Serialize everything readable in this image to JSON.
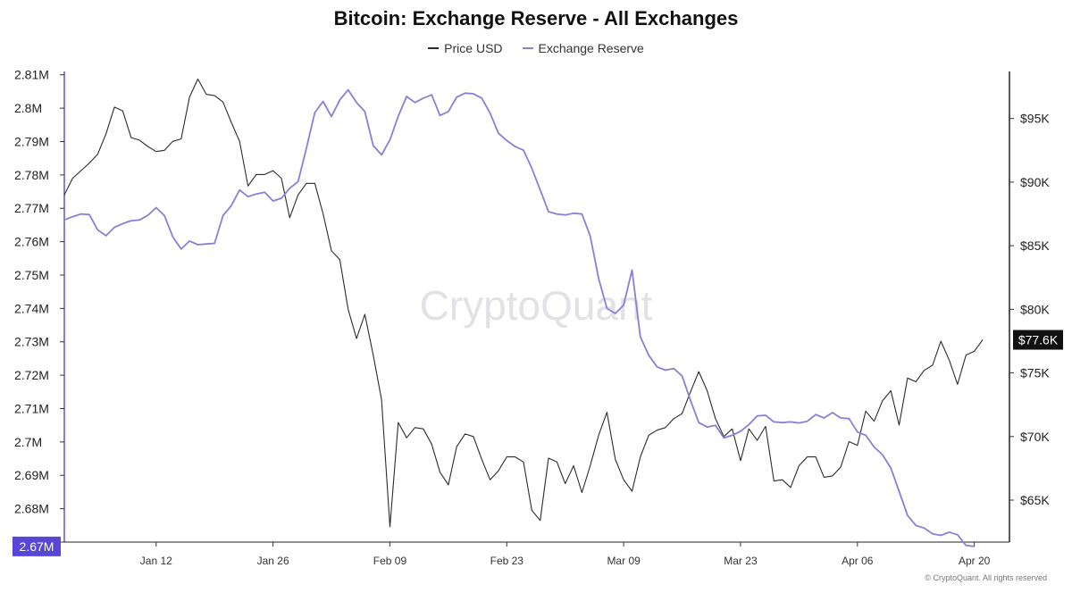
{
  "chart_data": {
    "type": "line",
    "title": "Bitcoin: Exchange Reserve - All Exchanges",
    "watermark": "CryptoQuant",
    "footer": "© CryptoQuant. All rights reserved",
    "y_left": {
      "ticks": [
        "2.67M",
        "2.68M",
        "2.69M",
        "2.7M",
        "2.71M",
        "2.72M",
        "2.73M",
        "2.74M",
        "2.75M",
        "2.76M",
        "2.77M",
        "2.78M",
        "2.79M",
        "2.8M",
        "2.81M"
      ],
      "range": [
        2670000,
        2811000
      ]
    },
    "y_right": {
      "ticks": [
        "$65K",
        "$70K",
        "$75K",
        "$80K",
        "$85K",
        "$90K",
        "$95K"
      ],
      "range": [
        61700,
        98700
      ]
    },
    "x_axis": {
      "ticks": [
        "Jan 12",
        "Jan 26",
        "Feb 09",
        "Feb 23",
        "Mar 09",
        "Mar 23",
        "Apr 06",
        "Apr 20"
      ],
      "tick_days": [
        11,
        25,
        39,
        53,
        67,
        81,
        95,
        109
      ],
      "range_days": [
        0,
        113
      ]
    },
    "last_labels": {
      "reserve": "2.67M",
      "price": "$77.6K"
    },
    "colors": {
      "price": "#2b2b2b",
      "reserve": "#8a7fd6",
      "reserve_label_bg": "#5a46d6",
      "price_label_bg": "#111111"
    },
    "series": [
      {
        "name": "Price USD",
        "axis": "right",
        "points": [
          [
            0,
            89000
          ],
          [
            1,
            90300
          ],
          [
            3,
            91500
          ],
          [
            4,
            92200
          ],
          [
            5,
            93800
          ],
          [
            6,
            95900
          ],
          [
            7,
            95600
          ],
          [
            8,
            93500
          ],
          [
            9,
            93300
          ],
          [
            10,
            92800
          ],
          [
            11,
            92400
          ],
          [
            12,
            92500
          ],
          [
            13,
            93200
          ],
          [
            14,
            93400
          ],
          [
            15,
            96700
          ],
          [
            16,
            98100
          ],
          [
            17,
            96900
          ],
          [
            18,
            96800
          ],
          [
            19,
            96300
          ],
          [
            20,
            94700
          ],
          [
            21,
            93200
          ],
          [
            22,
            89700
          ],
          [
            23,
            90600
          ],
          [
            24,
            90600
          ],
          [
            25,
            90900
          ],
          [
            26,
            90300
          ],
          [
            27,
            87200
          ],
          [
            28,
            89000
          ],
          [
            29,
            89900
          ],
          [
            30,
            89900
          ],
          [
            31,
            87500
          ],
          [
            32,
            84600
          ],
          [
            33,
            83900
          ],
          [
            34,
            80000
          ],
          [
            35,
            77700
          ],
          [
            36,
            79600
          ],
          [
            37,
            76400
          ],
          [
            38,
            72900
          ],
          [
            39,
            62900
          ],
          [
            40,
            71100
          ],
          [
            41,
            69900
          ],
          [
            42,
            70700
          ],
          [
            43,
            70600
          ],
          [
            44,
            69400
          ],
          [
            45,
            67200
          ],
          [
            46,
            66200
          ],
          [
            47,
            69200
          ],
          [
            48,
            70200
          ],
          [
            49,
            70000
          ],
          [
            50,
            68200
          ],
          [
            51,
            66600
          ],
          [
            52,
            67300
          ],
          [
            53,
            68400
          ],
          [
            54,
            68400
          ],
          [
            55,
            68000
          ],
          [
            56,
            64200
          ],
          [
            57,
            63400
          ],
          [
            58,
            68300
          ],
          [
            59,
            68000
          ],
          [
            60,
            66300
          ],
          [
            61,
            67700
          ],
          [
            62,
            65600
          ],
          [
            63,
            67700
          ],
          [
            64,
            70100
          ],
          [
            65,
            71900
          ],
          [
            66,
            68200
          ],
          [
            67,
            66600
          ],
          [
            68,
            65700
          ],
          [
            69,
            68400
          ],
          [
            70,
            70100
          ],
          [
            71,
            70500
          ],
          [
            72,
            70700
          ],
          [
            73,
            71400
          ],
          [
            74,
            71800
          ],
          [
            75,
            73500
          ],
          [
            76,
            75100
          ],
          [
            77,
            73600
          ],
          [
            78,
            71400
          ],
          [
            79,
            70000
          ],
          [
            80,
            70600
          ],
          [
            81,
            68100
          ],
          [
            82,
            70600
          ],
          [
            83,
            69700
          ],
          [
            84,
            70800
          ],
          [
            85,
            66500
          ],
          [
            86,
            66600
          ],
          [
            87,
            66000
          ],
          [
            88,
            67700
          ],
          [
            89,
            68400
          ],
          [
            90,
            68400
          ],
          [
            91,
            66800
          ],
          [
            92,
            66900
          ],
          [
            93,
            67600
          ],
          [
            94,
            69600
          ],
          [
            95,
            69300
          ],
          [
            96,
            72000
          ],
          [
            97,
            71200
          ],
          [
            98,
            72800
          ],
          [
            99,
            73600
          ],
          [
            100,
            70900
          ],
          [
            101,
            74600
          ],
          [
            102,
            74300
          ],
          [
            103,
            75200
          ],
          [
            104,
            75600
          ],
          [
            105,
            77500
          ],
          [
            106,
            76000
          ],
          [
            107,
            74100
          ],
          [
            108,
            76400
          ],
          [
            109,
            76700
          ],
          [
            110,
            77600
          ]
        ]
      },
      {
        "name": "Exchange Reserve",
        "axis": "left",
        "points": [
          [
            0,
            2.7665
          ],
          [
            1,
            2.7675
          ],
          [
            2,
            2.7683
          ],
          [
            3,
            2.7681
          ],
          [
            4,
            2.7635
          ],
          [
            5,
            2.7618
          ],
          [
            6,
            2.7643
          ],
          [
            7,
            2.7654
          ],
          [
            8,
            2.7663
          ],
          [
            9,
            2.7665
          ],
          [
            10,
            2.7679
          ],
          [
            11,
            2.7702
          ],
          [
            12,
            2.7678
          ],
          [
            13,
            2.7614
          ],
          [
            14,
            2.7578
          ],
          [
            15,
            2.7602
          ],
          [
            16,
            2.7591
          ],
          [
            17,
            2.7593
          ],
          [
            18,
            2.7595
          ],
          [
            19,
            2.7678
          ],
          [
            20,
            2.7708
          ],
          [
            21,
            2.7755
          ],
          [
            22,
            2.7735
          ],
          [
            23,
            2.7743
          ],
          [
            24,
            2.7748
          ],
          [
            25,
            2.7722
          ],
          [
            26,
            2.773
          ],
          [
            27,
            2.776
          ],
          [
            28,
            2.778
          ],
          [
            29,
            2.788
          ],
          [
            30,
            2.7987
          ],
          [
            31,
            2.802
          ],
          [
            32,
            2.7975
          ],
          [
            33,
            2.8025
          ],
          [
            34,
            2.8055
          ],
          [
            35,
            2.8017
          ],
          [
            36,
            2.799
          ],
          [
            37,
            2.7888
          ],
          [
            38,
            2.786
          ],
          [
            39,
            2.7905
          ],
          [
            40,
            2.7976
          ],
          [
            41,
            2.8035
          ],
          [
            42,
            2.8017
          ],
          [
            43,
            2.803
          ],
          [
            44,
            2.804
          ],
          [
            45,
            2.7978
          ],
          [
            46,
            2.799
          ],
          [
            47,
            2.8033
          ],
          [
            48,
            2.8045
          ],
          [
            49,
            2.8043
          ],
          [
            50,
            2.803
          ],
          [
            51,
            2.7985
          ],
          [
            52,
            2.7925
          ],
          [
            53,
            2.7903
          ],
          [
            54,
            2.7885
          ],
          [
            55,
            2.7874
          ],
          [
            56,
            2.782
          ],
          [
            57,
            2.7755
          ],
          [
            58,
            2.769
          ],
          [
            59,
            2.7683
          ],
          [
            60,
            2.768
          ],
          [
            61,
            2.7685
          ],
          [
            62,
            2.7683
          ],
          [
            63,
            2.7617
          ],
          [
            64,
            2.749
          ],
          [
            65,
            2.74
          ],
          [
            66,
            2.7385
          ],
          [
            67,
            2.741
          ],
          [
            68,
            2.7515
          ],
          [
            69,
            2.7315
          ],
          [
            70,
            2.726
          ],
          [
            71,
            2.7225
          ],
          [
            72,
            2.7215
          ],
          [
            73,
            2.722
          ],
          [
            74,
            2.7198
          ],
          [
            75,
            2.7125
          ],
          [
            76,
            2.7058
          ],
          [
            77,
            2.7045
          ],
          [
            78,
            2.705
          ],
          [
            79,
            2.7012
          ],
          [
            80,
            2.702
          ],
          [
            81,
            2.7032
          ],
          [
            82,
            2.7052
          ],
          [
            83,
            2.7078
          ],
          [
            84,
            2.708
          ],
          [
            85,
            2.706
          ],
          [
            86,
            2.7058
          ],
          [
            87,
            2.706
          ],
          [
            88,
            2.7057
          ],
          [
            89,
            2.7062
          ],
          [
            90,
            2.7082
          ],
          [
            91,
            2.7072
          ],
          [
            92,
            2.7088
          ],
          [
            93,
            2.7072
          ],
          [
            94,
            2.707
          ],
          [
            95,
            2.703
          ],
          [
            96,
            2.702
          ],
          [
            97,
            2.6985
          ],
          [
            98,
            2.6962
          ],
          [
            99,
            2.6922
          ],
          [
            100,
            2.6852
          ],
          [
            101,
            2.678
          ],
          [
            102,
            2.675
          ],
          [
            103,
            2.6742
          ],
          [
            104,
            2.6725
          ],
          [
            105,
            2.672
          ],
          [
            106,
            2.673
          ],
          [
            107,
            2.6722
          ],
          [
            108,
            2.669
          ],
          [
            109,
            2.6687
          ]
        ]
      }
    ]
  }
}
